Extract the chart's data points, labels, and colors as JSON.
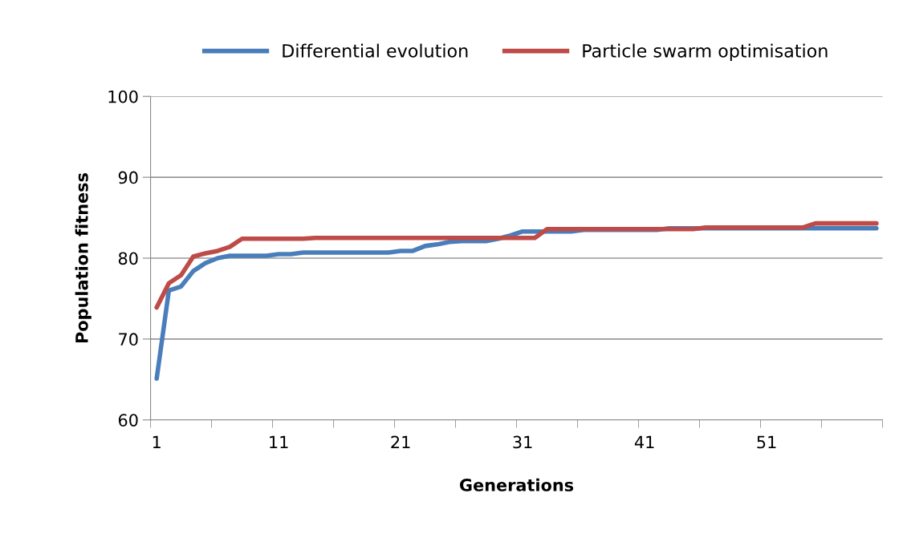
{
  "chart_data": {
    "type": "line",
    "xlabel": "Generations",
    "ylabel": "Population fitness",
    "categories": [
      "1",
      null,
      null,
      null,
      null,
      null,
      null,
      null,
      null,
      null,
      "11",
      null,
      null,
      null,
      null,
      null,
      null,
      null,
      null,
      null,
      "21",
      null,
      null,
      null,
      null,
      null,
      null,
      null,
      null,
      null,
      "31",
      null,
      null,
      null,
      null,
      null,
      null,
      null,
      null,
      null,
      "41",
      null,
      null,
      null,
      null,
      null,
      null,
      null,
      null,
      null,
      "51",
      null,
      null,
      null,
      null,
      null,
      null,
      null,
      null,
      null
    ],
    "series": [
      {
        "name": "Differential evolution",
        "color": "#4a7ebb",
        "values": [
          65.1,
          76.0,
          76.5,
          78.4,
          79.4,
          80.0,
          80.3,
          80.3,
          80.3,
          80.3,
          80.5,
          80.5,
          80.7,
          80.7,
          80.7,
          80.7,
          80.7,
          80.7,
          80.7,
          80.7,
          80.9,
          80.9,
          81.5,
          81.7,
          82.0,
          82.1,
          82.1,
          82.1,
          82.4,
          82.8,
          83.3,
          83.3,
          83.3,
          83.3,
          83.3,
          83.5,
          83.5,
          83.5,
          83.5,
          83.5,
          83.5,
          83.5,
          83.7,
          83.7,
          83.7,
          83.7,
          83.7,
          83.7,
          83.7,
          83.7,
          83.7,
          83.7,
          83.7,
          83.7,
          83.7,
          83.7,
          83.7,
          83.7,
          83.7,
          83.7
        ]
      },
      {
        "name": "Particle swarm optimisation",
        "color": "#be4b48",
        "values": [
          73.9,
          76.9,
          77.9,
          80.2,
          80.6,
          80.9,
          81.4,
          82.4,
          82.4,
          82.4,
          82.4,
          82.4,
          82.4,
          82.5,
          82.5,
          82.5,
          82.5,
          82.5,
          82.5,
          82.5,
          82.5,
          82.5,
          82.5,
          82.5,
          82.5,
          82.5,
          82.5,
          82.5,
          82.5,
          82.5,
          82.5,
          82.5,
          83.6,
          83.6,
          83.6,
          83.6,
          83.6,
          83.6,
          83.6,
          83.6,
          83.6,
          83.6,
          83.6,
          83.6,
          83.6,
          83.8,
          83.8,
          83.8,
          83.8,
          83.8,
          83.8,
          83.8,
          83.8,
          83.8,
          84.3,
          84.3,
          84.3,
          84.3,
          84.3,
          84.3
        ]
      }
    ],
    "ylim": [
      60,
      100
    ],
    "yticks": [
      60,
      70,
      80,
      90,
      100
    ],
    "grid": "y",
    "legend": "top",
    "marker": "none",
    "line_style": "solid"
  }
}
